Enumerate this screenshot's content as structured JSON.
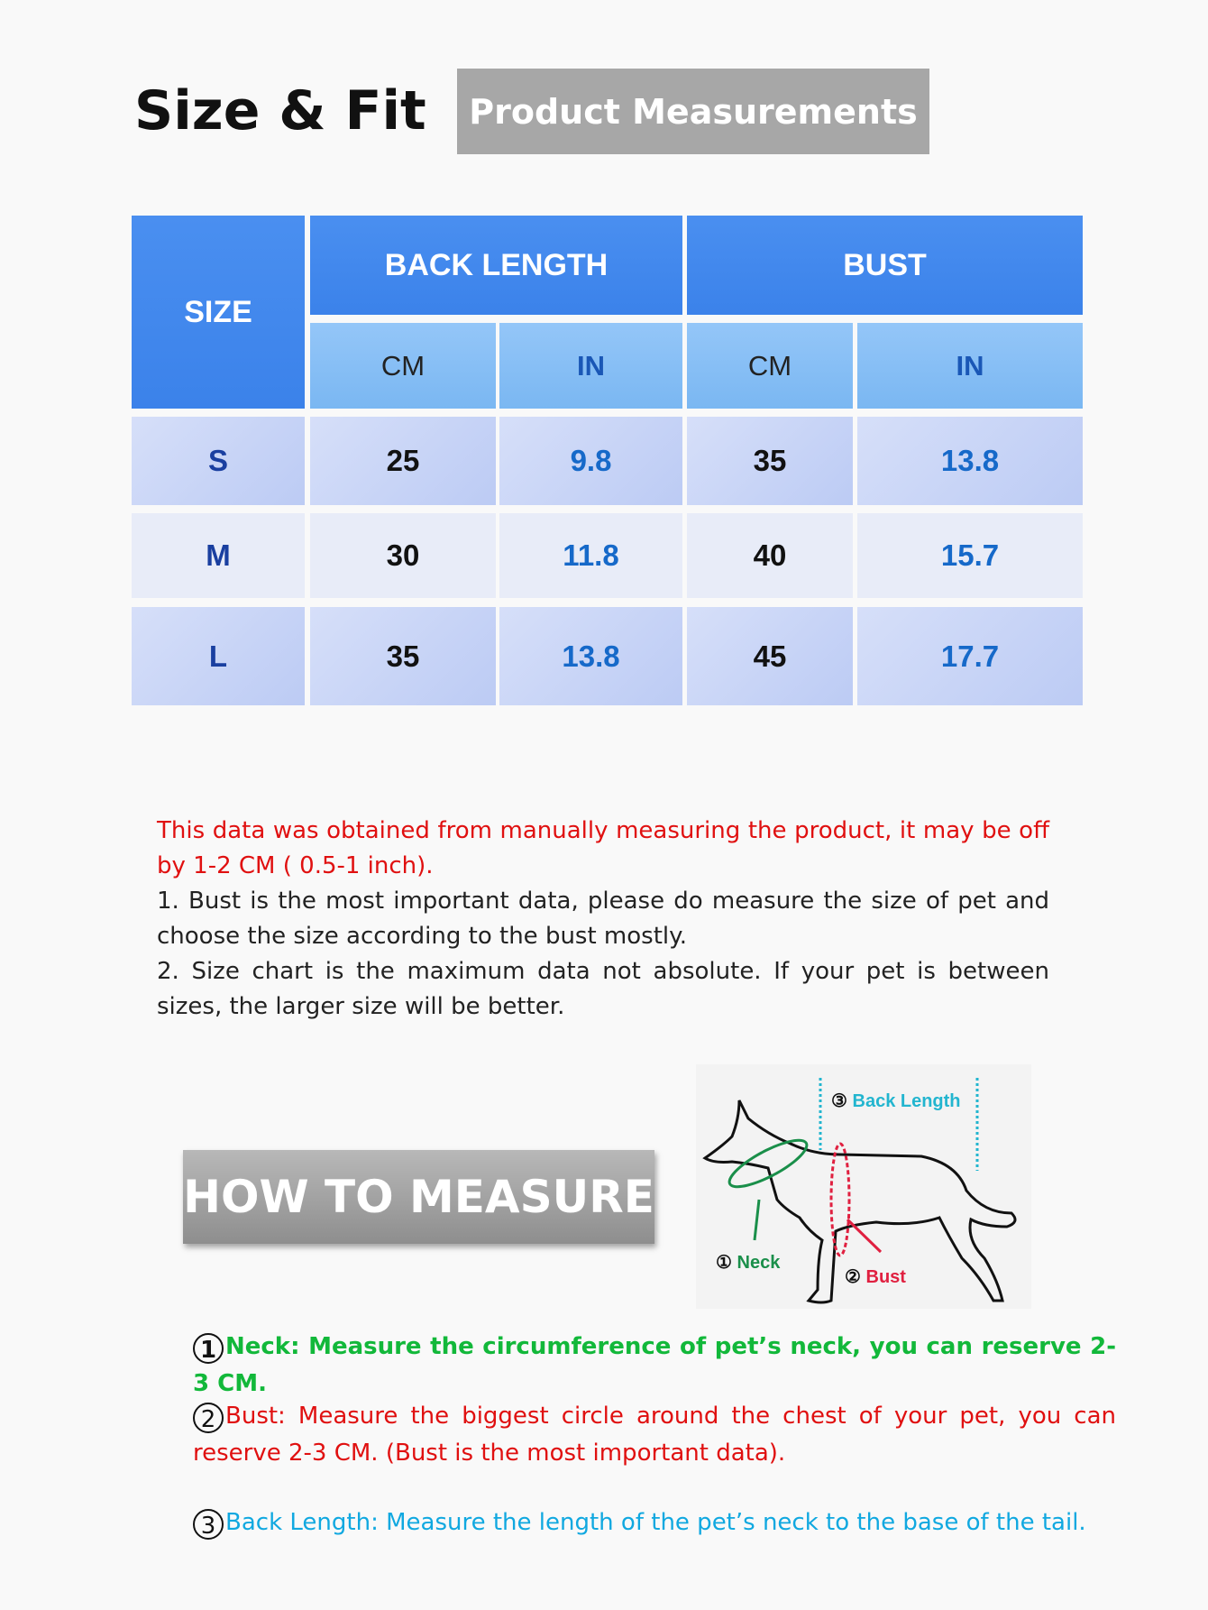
{
  "header": {
    "title": "Size & Fit",
    "badge": "Product Measurements"
  },
  "table": {
    "size_header": "SIZE",
    "groups": [
      "BACK LENGTH",
      "BUST"
    ],
    "units": [
      "CM",
      "IN",
      "CM",
      "IN"
    ],
    "rows": [
      {
        "size": "S",
        "back_cm": "25",
        "back_in": "9.8",
        "bust_cm": "35",
        "bust_in": "13.8"
      },
      {
        "size": "M",
        "back_cm": "30",
        "back_in": "11.8",
        "bust_cm": "40",
        "bust_in": "15.7"
      },
      {
        "size": "L",
        "back_cm": "35",
        "back_in": "13.8",
        "bust_cm": "45",
        "bust_in": "17.7"
      }
    ]
  },
  "notes": {
    "warning": "This data was obtained from manually measuring the product, it may be off by 1-2 CM ( 0.5-1 inch).",
    "point1": "1.  Bust is the most important data, please do measure the size of pet and choose the size according to the bust mostly.",
    "point2": "2.  Size chart is the maximum data not absolute. If your pet is between sizes, the larger size will be better."
  },
  "how_to": {
    "banner": "HOW TO MEASURE",
    "diagram": {
      "neck": "Neck",
      "bust": "Bust",
      "back": "Back Length",
      "n1": "①",
      "n2": "②",
      "n3": "③"
    },
    "items": [
      {
        "num": "1",
        "text": "Neck: Measure the circumference of pet’s neck, you can reserve 2-3 CM.",
        "color": "#12b83a"
      },
      {
        "num": "2",
        "text": "Bust: Measure the biggest circle around the chest of your pet, you can reserve 2-3 CM. (Bust is the most important data).",
        "color": "#e01010"
      },
      {
        "num": "3",
        "text": "Back Length: Measure the length of the pet’s neck to the base of the tail.",
        "color": "#10a8e0"
      }
    ]
  },
  "colors": {
    "header_blue": "#3b82ea",
    "unit_blue": "#7ab7f2",
    "neck_green": "#12b83a",
    "bust_red": "#e01010",
    "back_cyan": "#10a8e0"
  }
}
